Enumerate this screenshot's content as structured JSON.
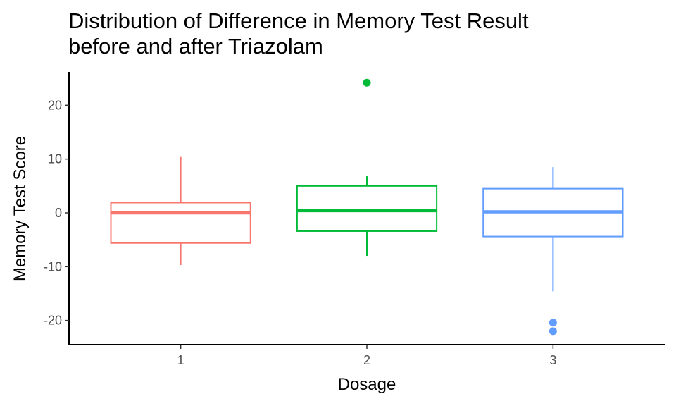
{
  "chart_data": {
    "type": "box",
    "title_lines": [
      "Distribution of Difference in Memory Test Result",
      "before and after Triazolam"
    ],
    "xlabel": "Dosage",
    "ylabel": "Memory Test Score",
    "categories": [
      "1",
      "2",
      "3"
    ],
    "y_ticks": [
      -20,
      -10,
      0,
      10,
      20
    ],
    "y_tick_labels": [
      "-20",
      "-10",
      "0",
      "10",
      "20"
    ],
    "ylim": [
      -24.5,
      26.2
    ],
    "grid": false,
    "legend": "none",
    "boxes": [
      {
        "category": "1",
        "color": "#F8766D",
        "whisker_low": -9.7,
        "q1": -5.6,
        "median": 0.0,
        "q3": 1.9,
        "whisker_high": 10.4,
        "outliers": []
      },
      {
        "category": "2",
        "color": "#00BA38",
        "whisker_low": -8.0,
        "q1": -3.4,
        "median": 0.4,
        "q3": 5.0,
        "whisker_high": 6.8,
        "outliers": [
          24.2
        ]
      },
      {
        "category": "3",
        "color": "#619CFF",
        "whisker_low": -14.6,
        "q1": -4.4,
        "median": 0.2,
        "q3": 4.5,
        "whisker_high": 8.5,
        "outliers": [
          -20.4,
          -22.0
        ]
      }
    ]
  }
}
